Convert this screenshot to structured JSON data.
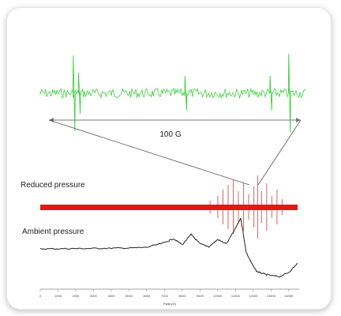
{
  "chart_data": [
    {
      "type": "line",
      "panel": "zoom-inset",
      "annotation": "100 G",
      "line_color": "#3fcf3f",
      "noise_amplitude": 6,
      "peaks": [
        {
          "x": 0.13,
          "amp": 48
        },
        {
          "x": 0.15,
          "amp": 26
        },
        {
          "x": 0.55,
          "amp": 22
        },
        {
          "x": 0.87,
          "amp": 22
        },
        {
          "x": 0.94,
          "amp": 50
        }
      ]
    },
    {
      "type": "line",
      "panel": "reduced",
      "series": [
        {
          "name": "Reduced pressure",
          "color": "#e01818"
        }
      ],
      "lines_color": "#d87070",
      "lines": [
        {
          "x": 0.66,
          "amp": 8
        },
        {
          "x": 0.69,
          "amp": 14
        },
        {
          "x": 0.71,
          "amp": 22
        },
        {
          "x": 0.73,
          "amp": 28
        },
        {
          "x": 0.75,
          "amp": 34
        },
        {
          "x": 0.77,
          "amp": 20
        },
        {
          "x": 0.79,
          "amp": 30
        },
        {
          "x": 0.81,
          "amp": 16
        },
        {
          "x": 0.83,
          "amp": 26
        },
        {
          "x": 0.845,
          "amp": 40
        },
        {
          "x": 0.86,
          "amp": 20
        },
        {
          "x": 0.88,
          "amp": 30
        },
        {
          "x": 0.9,
          "amp": 14
        },
        {
          "x": 0.92,
          "amp": 22
        },
        {
          "x": 0.94,
          "amp": 10
        }
      ]
    },
    {
      "type": "line",
      "panel": "ambient",
      "series": [
        {
          "name": "Ambient pressure",
          "color": "#222222"
        }
      ],
      "x": [
        0,
        1000,
        2000,
        3000,
        4000,
        5000,
        6000,
        7000,
        7500,
        8000,
        8500,
        9000,
        9500,
        10000,
        10500,
        11000,
        11300,
        11600,
        11900,
        12200,
        12500,
        13000,
        13500,
        14000,
        14500
      ],
      "y": [
        0,
        0.1,
        0.3,
        0.4,
        0.6,
        0.8,
        1.5,
        6,
        10,
        4,
        14,
        5,
        2,
        9,
        5,
        20,
        30,
        -3,
        -14,
        -22,
        -24,
        -26,
        -27,
        -23,
        -14
      ],
      "xlim": [
        0,
        14500
      ],
      "ticks": [
        "0",
        "1000",
        "2000",
        "3000",
        "4000",
        "5000",
        "6000",
        "7000",
        "8000",
        "9000",
        "10000",
        "11000",
        "12000",
        "13000",
        "14000"
      ],
      "xlabel": "Field (G)"
    }
  ]
}
